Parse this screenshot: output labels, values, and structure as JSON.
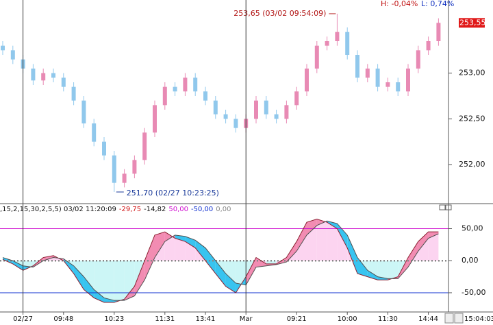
{
  "chart_data": [
    {
      "type": "candlestick",
      "categories": [
        null,
        null,
        "02/27",
        null,
        null,
        null,
        "09:48",
        null,
        null,
        null,
        null,
        "10:23",
        null,
        null,
        null,
        null,
        "11:31",
        null,
        null,
        null,
        "13:41",
        null,
        null,
        null,
        "Mar",
        null,
        null,
        null,
        null,
        "09:21",
        null,
        null,
        null,
        null,
        "10:00",
        null,
        null,
        null,
        "11:30",
        null,
        null,
        null,
        "14:44",
        null
      ],
      "open": [
        253.3,
        253.25,
        253.15,
        253.05,
        252.92,
        253.0,
        252.95,
        252.85,
        252.7,
        252.45,
        252.25,
        252.1,
        251.8,
        251.9,
        252.05,
        252.35,
        252.65,
        252.85,
        252.8,
        252.95,
        252.8,
        252.7,
        252.55,
        252.5,
        252.4,
        252.5,
        252.7,
        252.55,
        252.5,
        252.65,
        252.8,
        253.05,
        253.3,
        253.35,
        253.45,
        253.2,
        252.95,
        253.05,
        252.85,
        252.9,
        252.8,
        253.05,
        253.25,
        253.35
      ],
      "high": [
        253.35,
        253.3,
        253.2,
        253.1,
        253.05,
        253.05,
        253.0,
        252.9,
        252.75,
        252.5,
        252.3,
        252.15,
        251.95,
        252.1,
        252.4,
        252.7,
        252.9,
        252.9,
        253.0,
        253.0,
        252.85,
        252.75,
        252.6,
        252.55,
        252.55,
        252.75,
        252.75,
        252.6,
        252.7,
        252.85,
        253.1,
        253.35,
        253.4,
        253.65,
        253.5,
        253.25,
        253.1,
        253.1,
        252.95,
        252.95,
        253.1,
        253.3,
        253.4,
        253.6
      ],
      "low": [
        253.2,
        253.1,
        253.0,
        252.87,
        252.87,
        252.9,
        252.8,
        252.65,
        252.4,
        252.2,
        252.05,
        251.7,
        251.75,
        251.85,
        252.0,
        252.3,
        252.6,
        252.75,
        252.75,
        252.75,
        252.65,
        252.5,
        252.45,
        252.35,
        252.35,
        252.45,
        252.5,
        252.45,
        252.45,
        252.6,
        252.75,
        253.0,
        253.25,
        253.3,
        253.15,
        252.9,
        252.9,
        252.8,
        252.8,
        252.75,
        252.75,
        253.0,
        253.2,
        253.3
      ],
      "close": [
        253.25,
        253.15,
        253.05,
        252.92,
        253.0,
        252.95,
        252.85,
        252.7,
        252.45,
        252.25,
        252.1,
        251.8,
        251.9,
        252.05,
        252.35,
        252.65,
        252.85,
        252.8,
        252.95,
        252.8,
        252.7,
        252.55,
        252.5,
        252.4,
        252.5,
        252.7,
        252.55,
        252.5,
        252.65,
        252.8,
        253.05,
        253.3,
        253.35,
        253.45,
        253.2,
        252.95,
        253.05,
        252.85,
        252.9,
        252.8,
        253.05,
        253.25,
        253.35,
        253.55
      ],
      "up_color": "#e88ab4",
      "down_color": "#90c8ec",
      "ylim": [
        251.58,
        253.8
      ],
      "yticks": [
        {
          "value": 253,
          "label": "253,00"
        },
        {
          "value": 252.5,
          "label": "252,50"
        },
        {
          "value": 252,
          "label": "252,00"
        }
      ],
      "last_label": "253,55",
      "low_note": "251,70 (02/27 10:23:25)",
      "high_note": "253,65 (03/02 09:54:09)",
      "high_change": "H: -0,04%",
      "low_change": "L: 0,74%"
    },
    {
      "type": "oscillator",
      "header": [
        ",15,2,15,30,2,5,5) 03/02 11:20:09",
        "-29,75",
        "-14,82",
        "50,00",
        "-50,00",
        "0,00"
      ],
      "header_colors": [
        "#111111",
        "#d01010",
        "#111111",
        "#d010d0",
        "#1030d0",
        "#888888"
      ],
      "series": [
        {
          "color": "#8a2030",
          "values": [
            2,
            -5,
            -15,
            -8,
            5,
            8,
            0,
            -20,
            -45,
            -58,
            -65,
            -65,
            -60,
            -40,
            0,
            40,
            45,
            35,
            30,
            20,
            0,
            -20,
            -40,
            -50,
            -25,
            5,
            -5,
            -5,
            5,
            30,
            60,
            65,
            60,
            50,
            20,
            -20,
            -25,
            -30,
            -30,
            -25,
            5,
            30,
            45,
            45
          ]
        },
        {
          "color": "#505050",
          "values": [
            5,
            0,
            -8,
            -10,
            0,
            5,
            3,
            -8,
            -25,
            -45,
            -58,
            -62,
            -62,
            -55,
            -30,
            5,
            30,
            40,
            38,
            32,
            20,
            0,
            -20,
            -35,
            -38,
            -10,
            -8,
            -6,
            -2,
            15,
            40,
            55,
            62,
            58,
            40,
            5,
            -15,
            -25,
            -28,
            -28,
            -10,
            15,
            35,
            42
          ]
        }
      ],
      "up_fill": "#f28cb2",
      "down_fill": "#38c4f0",
      "pos_fill": "#fcd4f0",
      "neg_fill": "#ccf6f6",
      "ylim": [
        -80,
        88
      ],
      "yticks": [
        {
          "value": 50,
          "label": "50,00"
        },
        {
          "value": 0,
          "label": "0,00"
        },
        {
          "value": -50,
          "label": "-50,00"
        }
      ],
      "ref_colors": [
        "#d010d0",
        "#888888",
        "#1030d0"
      ],
      "time": "15:04:03"
    }
  ]
}
